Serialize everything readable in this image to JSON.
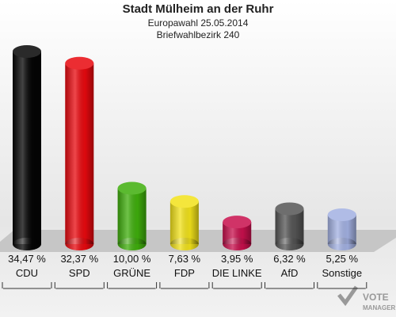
{
  "chart_data": {
    "type": "bar",
    "title": "Stadt Mülheim an der Ruhr",
    "subtitle": "Europawahl 25.05.2014",
    "subtitle2": "Briefwahlbezirk 240",
    "categories": [
      "CDU",
      "SPD",
      "GRÜNE",
      "FDP",
      "DIE LINKE",
      "AfD",
      "Sonstige"
    ],
    "values": [
      34.47,
      32.37,
      10.0,
      7.63,
      3.95,
      6.32,
      5.25
    ],
    "value_labels": [
      "34,47 %",
      "32,37 %",
      "10,00 %",
      "7,63 %",
      "3,95 %",
      "6,32 %",
      "5,25 %"
    ],
    "colors": [
      "#050505",
      "#e8090f",
      "#3fae0c",
      "#f2e21a",
      "#c8104d",
      "#555555",
      "#a3b1e2"
    ]
  },
  "logo": {
    "line1": "VOTE",
    "line2": "MANAGER"
  }
}
